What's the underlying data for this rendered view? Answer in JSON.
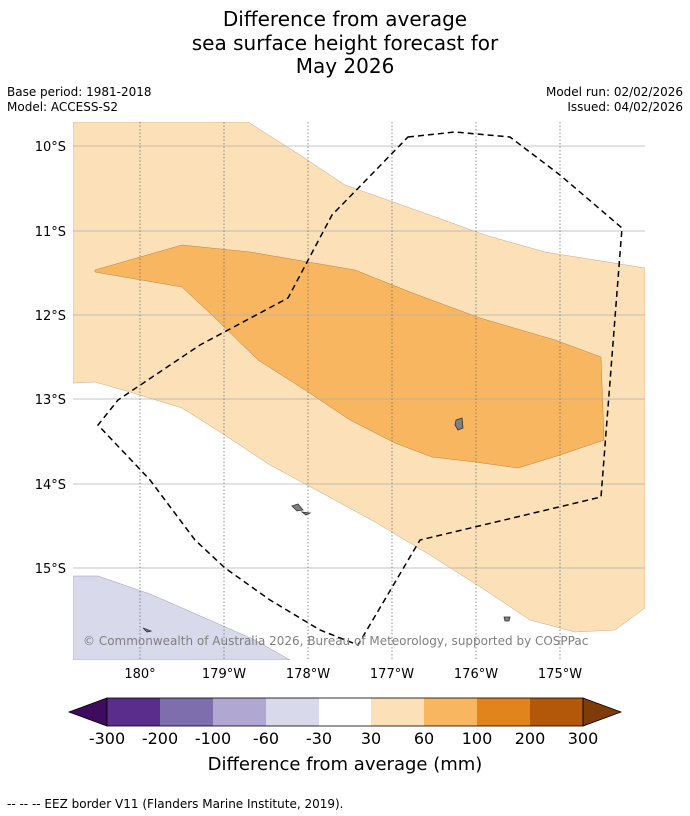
{
  "title": {
    "line1": "Difference from average",
    "line2": "sea surface height forecast for",
    "line3": "May 2026"
  },
  "meta": {
    "base_period": "Base period: 1981-2018",
    "model": "Model: ACCESS-S2",
    "model_run": "Model run: 02/02/2026",
    "issued": "Issued: 04/02/2026"
  },
  "map": {
    "lat_labels": [
      "10°S",
      "11°S",
      "12°S",
      "13°S",
      "14°S",
      "15°S"
    ],
    "lon_labels": [
      "180°",
      "179°W",
      "178°W",
      "177°W",
      "176°W",
      "175°W"
    ],
    "copyright": "© Commonwealth of Australia 2026, Bureau of Meteorology, supported by COSPPac",
    "colors": {
      "band_30_60": "#fce0b7",
      "band_60_100": "#f8b661",
      "band_neg60_neg30": "#d8d9eb",
      "land": "#808080"
    }
  },
  "colorbar": {
    "label": "Difference from average (mm)",
    "ticks": [
      "-300",
      "-200",
      "-100",
      "-60",
      "-30",
      "30",
      "60",
      "100",
      "200",
      "300"
    ],
    "colors": [
      "#3f0b5e",
      "#5a2d8c",
      "#7f6eae",
      "#b0a8d2",
      "#d8d9eb",
      "#ffffff",
      "#fce0b7",
      "#f8b661",
      "#e0841b",
      "#b35808",
      "#7f3b08"
    ]
  },
  "footer": "--  --  -- EEZ border V11 (Flanders Marine Institute, 2019)."
}
